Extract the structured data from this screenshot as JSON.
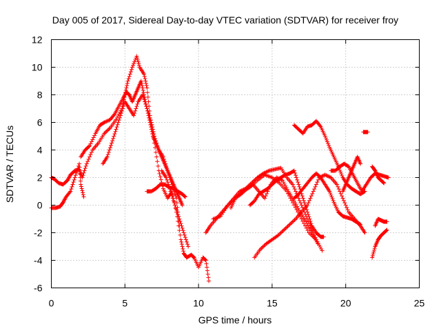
{
  "chart_data": {
    "type": "scatter",
    "title": "Day 005 of 2017, Sidereal Day-to-day VTEC variation (SDTVAR) for receiver froy",
    "xlabel": "GPS time / hours",
    "ylabel": "SDTVAR / TECUs",
    "xlim": [
      0,
      25
    ],
    "ylim": [
      -6,
      12
    ],
    "xticks": [
      "0",
      "5",
      "10",
      "15",
      "20",
      "25"
    ],
    "yticks": [
      "-6",
      "-4",
      "-2",
      "0",
      "2",
      "4",
      "6",
      "8",
      "10",
      "12"
    ],
    "grid": true,
    "marker": "plus",
    "color": "#ff0000",
    "series": [
      {
        "x": [
          0.0,
          0.3,
          0.6,
          0.8,
          1.0,
          1.3,
          1.6,
          1.9,
          2.0,
          2.2
        ],
        "y": [
          -0.2,
          -0.2,
          -0.1,
          0.2,
          0.6,
          1.0,
          2.0,
          3.0,
          1.5,
          0.6
        ]
      },
      {
        "x": [
          0.0,
          0.2,
          0.5,
          0.8,
          1.1,
          1.3,
          1.6,
          1.9,
          2.1,
          2.4,
          2.8,
          3.2,
          3.6,
          4.0,
          4.4,
          4.8,
          5.0,
          5.2,
          5.5,
          5.8,
          6.0,
          6.3,
          6.5,
          6.7,
          7.0,
          7.3,
          7.6,
          7.9,
          8.2,
          8.5,
          8.8,
          9.0,
          9.2,
          9.5,
          9.7,
          10.0,
          10.3,
          10.5,
          10.7
        ],
        "y": [
          2.0,
          1.9,
          1.6,
          1.5,
          1.8,
          2.2,
          2.5,
          2.6,
          2.0,
          3.0,
          4.0,
          4.5,
          5.2,
          5.6,
          6.2,
          7.0,
          8.0,
          9.0,
          10.0,
          10.8,
          10.0,
          9.5,
          8.5,
          6.5,
          4.5,
          2.5,
          1.2,
          0.5,
          1.0,
          -0.5,
          -2.5,
          -3.5,
          -3.8,
          -3.6,
          -3.8,
          -4.5,
          -3.8,
          -4.0,
          -5.5
        ]
      },
      {
        "x": [
          2.0,
          2.3,
          2.6,
          3.0,
          3.3,
          3.6,
          4.0,
          4.3,
          4.6,
          4.9,
          5.1,
          5.3,
          5.5,
          5.7,
          5.9,
          6.1,
          6.3,
          6.5,
          6.7,
          6.9,
          7.1,
          7.3,
          7.5,
          7.7,
          7.9,
          8.1,
          8.3,
          8.5,
          8.7,
          8.9
        ],
        "y": [
          3.5,
          4.0,
          4.3,
          5.2,
          5.8,
          6.0,
          6.2,
          6.6,
          7.2,
          7.8,
          8.2,
          8.0,
          7.5,
          8.0,
          8.5,
          9.0,
          8.0,
          7.0,
          6.0,
          5.0,
          4.5,
          4.0,
          3.5,
          3.0,
          2.5,
          2.0,
          1.5,
          1.0,
          0.5,
          0.0
        ]
      },
      {
        "x": [
          3.5,
          3.8,
          4.1,
          4.4,
          4.7,
          5.0,
          5.3,
          5.6,
          5.9,
          6.2,
          6.5,
          6.8,
          7.0,
          7.3,
          7.6,
          7.9,
          8.2,
          8.5,
          8.7
        ],
        "y": [
          3.0,
          3.5,
          4.5,
          5.5,
          6.5,
          7.5,
          7.0,
          6.5,
          7.5,
          8.0,
          7.0,
          6.0,
          5.0,
          4.0,
          3.5,
          2.5,
          1.5,
          0.5,
          -1.5
        ]
      },
      {
        "x": [
          6.5,
          6.8,
          7.1,
          7.4,
          7.7,
          8.0,
          8.3,
          8.6,
          8.9,
          9.1
        ],
        "y": [
          1.0,
          1.0,
          1.2,
          1.5,
          1.5,
          1.3,
          1.2,
          1.0,
          0.8,
          0.6
        ]
      },
      {
        "x": [
          7.5,
          7.8,
          8.1,
          8.4,
          8.7,
          9.0,
          9.3
        ],
        "y": [
          2.5,
          2.0,
          1.0,
          0.0,
          -1.0,
          -2.0,
          -3.0
        ]
      },
      {
        "x": [
          10.5,
          10.8,
          11.2,
          11.6,
          12.0,
          12.4,
          12.8,
          13.2,
          13.6,
          14.0,
          14.4,
          14.8,
          15.2,
          15.6,
          16.0,
          16.4,
          16.8,
          17.2,
          17.6,
          18.0,
          18.4
        ],
        "y": [
          -2.0,
          -1.5,
          -1.0,
          -0.5,
          0.0,
          0.5,
          1.0,
          1.2,
          1.6,
          2.0,
          2.3,
          2.5,
          2.6,
          2.7,
          2.0,
          1.5,
          0.5,
          -0.5,
          -1.5,
          -2.5,
          -3.3
        ]
      },
      {
        "x": [
          11.0,
          11.5,
          12.0,
          12.5,
          13.0,
          13.5,
          14.0,
          14.5,
          15.0,
          15.5,
          16.0,
          16.5,
          17.0,
          17.5,
          18.0
        ],
        "y": [
          -1.0,
          -0.8,
          0.0,
          0.5,
          1.0,
          1.3,
          1.8,
          2.2,
          2.0,
          1.6,
          1.0,
          0.0,
          -1.0,
          -2.0,
          -2.5
        ]
      },
      {
        "x": [
          12.2,
          12.5,
          12.9,
          13.3,
          13.7,
          14.1,
          14.5,
          14.9,
          15.3,
          15.7,
          16.1,
          16.5,
          16.9,
          17.3,
          17.7,
          18.1
        ],
        "y": [
          -0.2,
          0.5,
          0.8,
          1.2,
          1.5,
          1.0,
          0.5,
          1.5,
          2.0,
          1.8,
          1.0,
          0.3,
          -0.5,
          -1.2,
          -2.0,
          -2.8
        ]
      },
      {
        "x": [
          13.5,
          13.8,
          14.1,
          14.4,
          14.7,
          15.0,
          15.3,
          15.6,
          15.9,
          16.2,
          16.5,
          16.8,
          17.1,
          17.4,
          17.7,
          18.0,
          18.3,
          18.5
        ],
        "y": [
          0.0,
          0.3,
          0.8,
          1.0,
          1.2,
          1.5,
          1.8,
          2.0,
          2.2,
          2.3,
          2.5,
          1.5,
          0.5,
          -0.5,
          -1.5,
          -2.0,
          -2.3,
          -2.3
        ]
      },
      {
        "x": [
          13.8,
          14.2,
          14.6,
          15.0,
          15.4,
          15.8,
          16.2,
          16.6,
          17.0,
          17.4,
          17.8,
          18.2,
          18.6,
          19.0,
          19.4,
          19.8,
          20.2,
          20.6,
          21.0,
          21.3
        ],
        "y": [
          -3.8,
          -3.2,
          -2.8,
          -2.5,
          -2.2,
          -1.8,
          -1.4,
          -1.0,
          -0.5,
          0.0,
          1.0,
          2.0,
          2.2,
          2.0,
          1.5,
          0.5,
          -0.5,
          -1.0,
          -1.5,
          -2.0
        ]
      },
      {
        "x": [
          16.5,
          16.8,
          17.1,
          17.4,
          17.7,
          18.0,
          18.3,
          18.6,
          18.9,
          19.2,
          19.5,
          19.8,
          20.1,
          20.4,
          20.7,
          21.0
        ],
        "y": [
          0.5,
          0.8,
          1.2,
          1.6,
          2.0,
          2.3,
          2.0,
          1.5,
          1.0,
          0.2,
          -0.5,
          -0.8,
          -0.9,
          -1.0,
          -1.2,
          -1.4
        ]
      },
      {
        "x": [
          16.5,
          16.8,
          17.1,
          17.4,
          17.7,
          18.0,
          18.3,
          18.6,
          18.9,
          19.2,
          19.5,
          19.8,
          20.1,
          20.4,
          20.7,
          21.0,
          21.3
        ],
        "y": [
          5.8,
          5.5,
          5.2,
          5.7,
          5.8,
          6.1,
          5.7,
          5.0,
          4.2,
          3.5,
          2.8,
          2.0,
          1.5,
          1.2,
          1.0,
          0.8,
          1.0
        ]
      },
      {
        "x": [
          19.0,
          19.3,
          19.6,
          19.9,
          20.2,
          20.5,
          20.8,
          21.1,
          21.4,
          21.7,
          22.0,
          22.3,
          22.6,
          22.9
        ],
        "y": [
          2.5,
          2.5,
          2.8,
          3.0,
          2.8,
          2.2,
          1.6,
          1.0,
          1.5,
          2.0,
          2.3,
          2.2,
          2.1,
          2.0
        ]
      },
      {
        "x": [
          19.8,
          20.0,
          20.2,
          20.4,
          20.6,
          20.8,
          21.0
        ],
        "y": [
          1.0,
          1.5,
          2.0,
          2.5,
          3.0,
          3.5,
          3.0
        ]
      },
      {
        "x": [
          21.2,
          21.3,
          21.4,
          21.5
        ],
        "y": [
          5.3,
          5.3,
          5.3,
          5.3
        ]
      },
      {
        "x": [
          21.8,
          22.0,
          22.2,
          22.4,
          22.6,
          22.8
        ],
        "y": [
          -3.8,
          -3.0,
          -2.5,
          -2.2,
          -2.0,
          -1.8
        ]
      },
      {
        "x": [
          22.0,
          22.2,
          22.4,
          22.6,
          22.8
        ],
        "y": [
          -1.5,
          -1.0,
          -1.1,
          -1.2,
          -1.2
        ]
      },
      {
        "x": [
          21.8,
          22.0,
          22.2,
          22.4,
          22.6
        ],
        "y": [
          2.8,
          2.5,
          2.0,
          1.8,
          1.6
        ]
      }
    ]
  }
}
